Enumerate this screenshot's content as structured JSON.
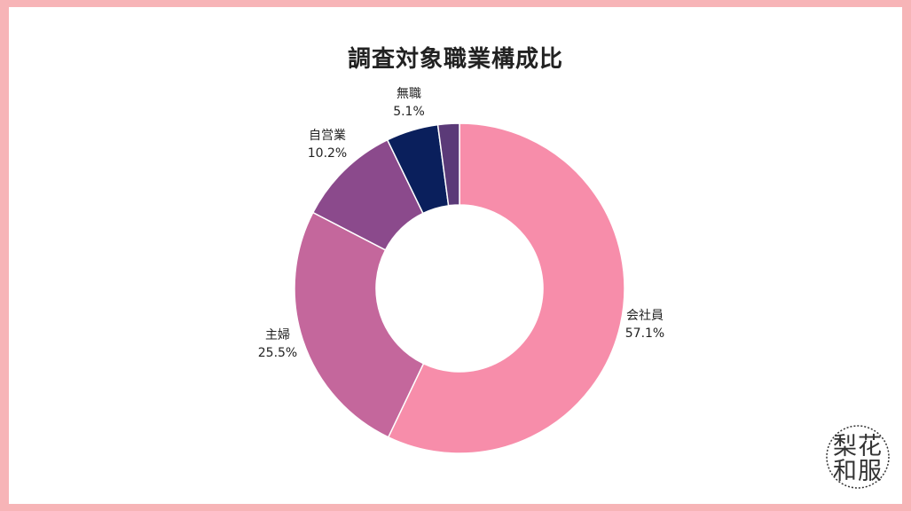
{
  "chart_data": {
    "type": "pie",
    "donut": true,
    "title": "調査対象職業構成比",
    "categories": [
      "会社員",
      "主婦",
      "自営業",
      "無職",
      ""
    ],
    "values": [
      57.1,
      25.5,
      10.2,
      5.1,
      2.1
    ],
    "value_labels": [
      "57.1%",
      "25.5%",
      "10.2%",
      "5.1%",
      ""
    ],
    "colors": [
      "#f78daa",
      "#c4679c",
      "#8b4a8c",
      "#0a1f5c",
      "#5b3a78"
    ],
    "start_angle_deg": 0,
    "direction": "clockwise",
    "legend": "none"
  },
  "logo": {
    "text": "梨花和服"
  }
}
